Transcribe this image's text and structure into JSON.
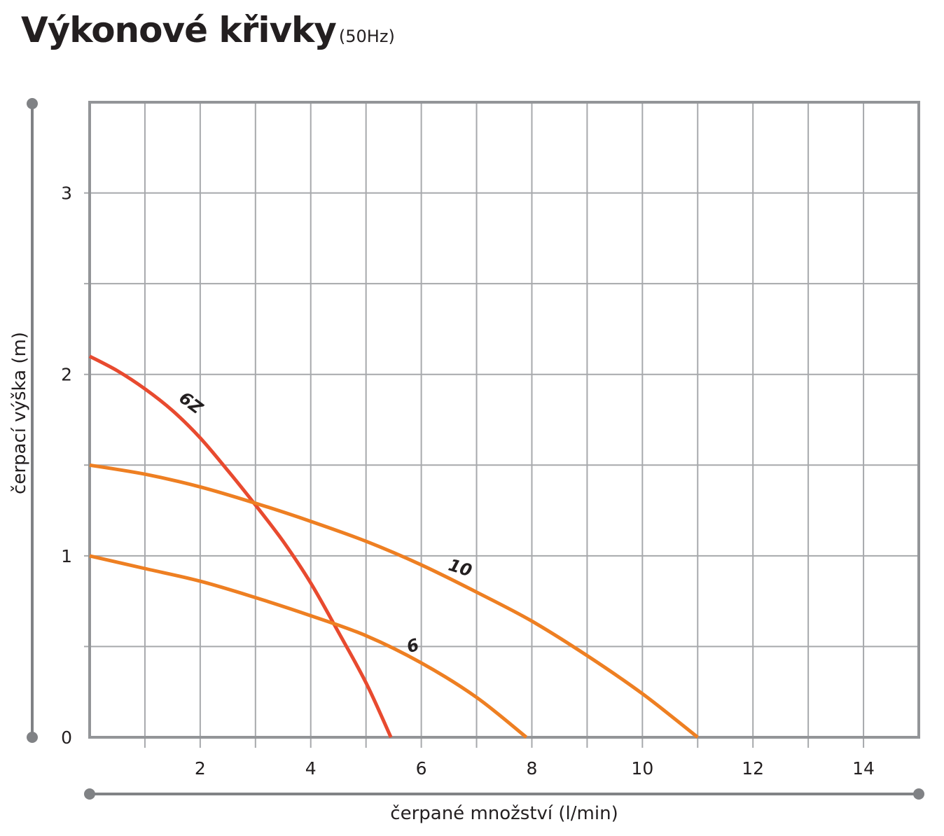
{
  "header": {
    "title": "Výkonové křivky",
    "subtitle": "(50Hz)"
  },
  "colors": {
    "grid": "#a7a9ac",
    "frame": "#939598",
    "axis_line": "#808285",
    "orange": "#ee7f22",
    "red": "#e84a2f",
    "text": "#231f20"
  },
  "chart_data": {
    "type": "line",
    "xlabel": "čerpané množství (l/min)",
    "ylabel": "čerpací výška (m)",
    "xlim": [
      0,
      15
    ],
    "ylim": [
      0,
      3.5
    ],
    "x_ticks": [
      2,
      4,
      6,
      8,
      10,
      12,
      14
    ],
    "y_ticks": [
      0,
      1,
      2,
      3
    ],
    "grid": true,
    "series": [
      {
        "name": "Z9",
        "color": "#e84a2f",
        "x": [
          0,
          0.5,
          1,
          1.5,
          2,
          2.5,
          3,
          3.5,
          4,
          4.5,
          5,
          5.45
        ],
        "y": [
          2.1,
          2.02,
          1.92,
          1.8,
          1.65,
          1.47,
          1.28,
          1.08,
          0.85,
          0.58,
          0.3,
          0.0
        ]
      },
      {
        "name": "10",
        "color": "#ee7f22",
        "x": [
          0,
          1,
          2,
          3,
          4,
          5,
          6,
          7,
          8,
          9,
          10,
          11
        ],
        "y": [
          1.5,
          1.45,
          1.38,
          1.29,
          1.19,
          1.08,
          0.95,
          0.8,
          0.64,
          0.45,
          0.24,
          0.0
        ]
      },
      {
        "name": "6",
        "color": "#ee7f22",
        "x": [
          0,
          1,
          2,
          3,
          4,
          5,
          6,
          7,
          7.9
        ],
        "y": [
          1.0,
          0.93,
          0.86,
          0.77,
          0.67,
          0.56,
          0.41,
          0.22,
          0.0
        ]
      }
    ]
  }
}
